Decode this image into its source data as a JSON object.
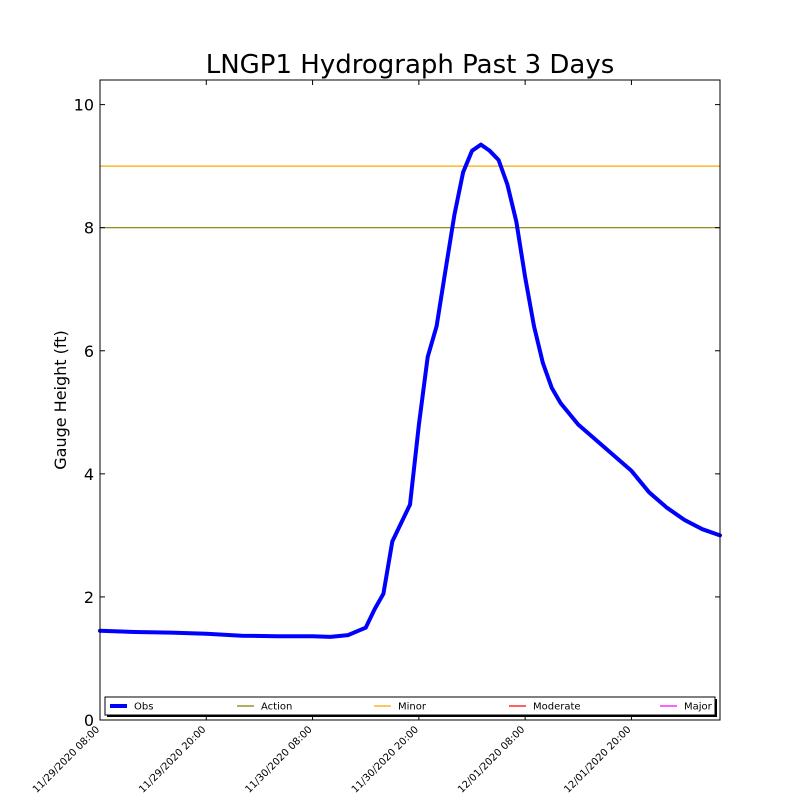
{
  "chart_data": {
    "type": "line",
    "title": "LNGP1 Hydrograph Past 3 Days",
    "xlabel": "",
    "ylabel": "Gauge Height (ft)",
    "ylim": [
      0,
      10.4
    ],
    "yticks": [
      0,
      2,
      4,
      6,
      8,
      10
    ],
    "xlim": [
      "2020-11-29T08:00",
      "2020-12-02T06:00"
    ],
    "xticks": [
      "11/29/2020 08:00",
      "11/29/2020 20:00",
      "11/30/2020 08:00",
      "11/30/2020 20:00",
      "12/01/2020 08:00",
      "12/01/2020 20:00"
    ],
    "grid": false,
    "legend_position": "bottom",
    "legend": [
      "Obs",
      "Action",
      "Minor",
      "Moderate",
      "Major"
    ],
    "colors": {
      "obs": "#0000ff",
      "action": "#808000",
      "minor": "#ffa500",
      "moderate": "#ff0000",
      "major": "#ff00ff"
    },
    "thresholds": [
      {
        "name": "Action",
        "value": 8.0
      },
      {
        "name": "Minor",
        "value": 9.0
      }
    ],
    "series": [
      {
        "name": "Obs",
        "x": [
          "2020-11-29T08:00",
          "2020-11-29T12:00",
          "2020-11-29T16:00",
          "2020-11-29T20:00",
          "2020-11-30T00:00",
          "2020-11-30T04:00",
          "2020-11-30T08:00",
          "2020-11-30T10:00",
          "2020-11-30T12:00",
          "2020-11-30T14:00",
          "2020-11-30T15:00",
          "2020-11-30T16:00",
          "2020-11-30T17:00",
          "2020-11-30T18:00",
          "2020-11-30T19:00",
          "2020-11-30T20:00",
          "2020-11-30T21:00",
          "2020-11-30T22:00",
          "2020-11-30T23:00",
          "2020-12-01T00:00",
          "2020-12-01T01:00",
          "2020-12-01T02:00",
          "2020-12-01T03:00",
          "2020-12-01T04:00",
          "2020-12-01T05:00",
          "2020-12-01T06:00",
          "2020-12-01T07:00",
          "2020-12-01T08:00",
          "2020-12-01T09:00",
          "2020-12-01T10:00",
          "2020-12-01T11:00",
          "2020-12-01T12:00",
          "2020-12-01T14:00",
          "2020-12-01T16:00",
          "2020-12-01T18:00",
          "2020-12-01T20:00",
          "2020-12-01T22:00",
          "2020-12-02T00:00",
          "2020-12-02T02:00",
          "2020-12-02T04:00",
          "2020-12-02T06:00"
        ],
        "y": [
          1.45,
          1.43,
          1.42,
          1.4,
          1.37,
          1.36,
          1.36,
          1.35,
          1.38,
          1.5,
          1.8,
          2.05,
          2.9,
          3.2,
          3.5,
          4.8,
          5.9,
          6.4,
          7.3,
          8.2,
          8.9,
          9.25,
          9.35,
          9.25,
          9.1,
          8.7,
          8.1,
          7.2,
          6.4,
          5.8,
          5.4,
          5.15,
          4.8,
          4.55,
          4.3,
          4.05,
          3.7,
          3.45,
          3.25,
          3.1,
          3.0
        ]
      }
    ]
  }
}
